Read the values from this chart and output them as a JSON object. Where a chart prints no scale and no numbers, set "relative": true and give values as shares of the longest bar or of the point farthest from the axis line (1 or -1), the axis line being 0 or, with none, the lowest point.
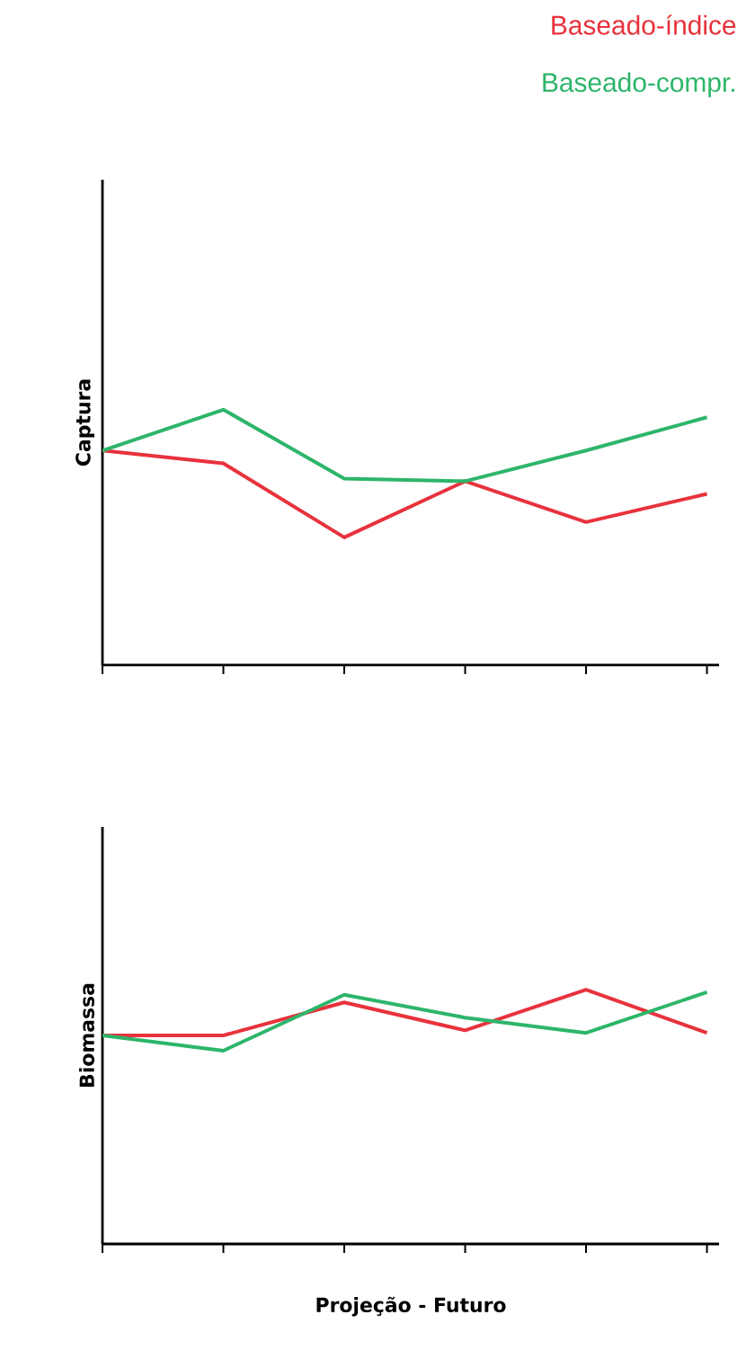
{
  "chart_data": [
    {
      "type": "line",
      "ylabel": "Captura",
      "relative": true,
      "legend": "top right",
      "categories": [
        null,
        null,
        null,
        null,
        null,
        null
      ],
      "series": [
        {
          "name": "Baseado-índice",
          "color": "#e8323c",
          "values": [
            0.84,
            0.79,
            0.5,
            0.72,
            0.56,
            0.67
          ]
        },
        {
          "name": "Baseado-compr.",
          "color": "#2db56a",
          "values": [
            0.84,
            1.0,
            0.73,
            0.72,
            0.84,
            0.97
          ]
        }
      ]
    },
    {
      "type": "line",
      "ylabel": "Biomassa",
      "xlabel": "Projeção - Futuro",
      "relative": true,
      "categories": [
        null,
        null,
        null,
        null,
        null,
        null
      ],
      "series": [
        {
          "color": "#e8323c",
          "values": [
            0.82,
            0.82,
            0.95,
            0.84,
            1.0,
            0.83
          ]
        },
        {
          "color": "#2db56a",
          "values": [
            0.82,
            0.76,
            0.98,
            0.89,
            0.83,
            0.99
          ]
        }
      ]
    }
  ]
}
